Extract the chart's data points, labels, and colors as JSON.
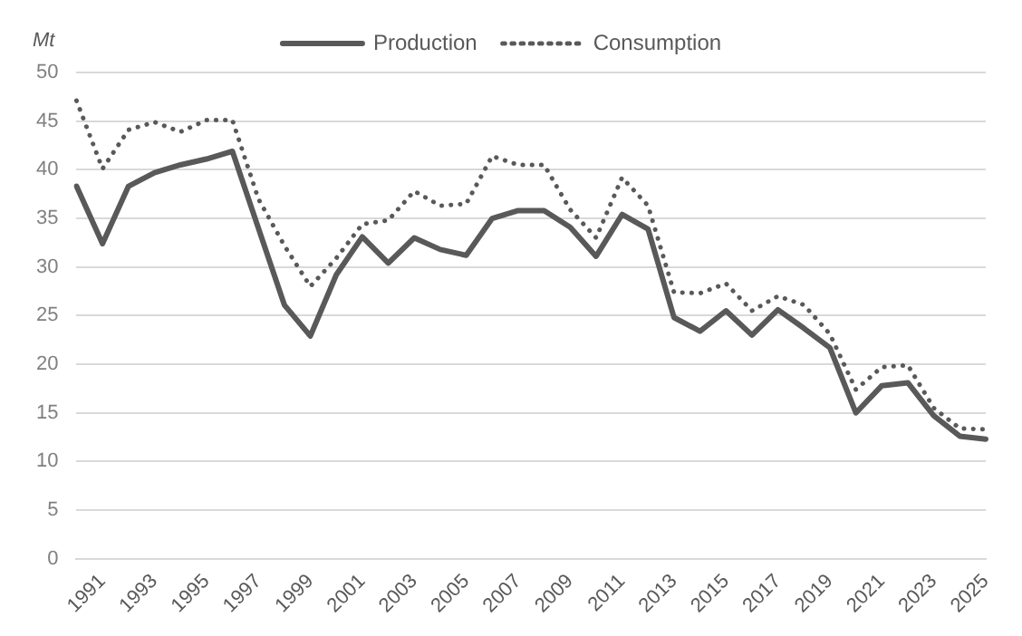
{
  "chart_data": {
    "type": "line",
    "ylabel": "Mt",
    "categories": [
      null,
      "1991",
      null,
      "1993",
      null,
      "1995",
      null,
      "1997",
      null,
      "1999",
      null,
      "2001",
      null,
      "2003",
      null,
      "2005",
      null,
      "2007",
      null,
      "2009",
      null,
      "2011",
      null,
      "2013",
      null,
      "2015",
      null,
      "2017",
      null,
      "2019",
      null,
      "2021",
      null,
      "2023",
      null,
      "2025"
    ],
    "series": [
      {
        "name": "Production",
        "color": "#595959",
        "line_style": "solid",
        "values": [
          38.3,
          32.4,
          38.3,
          39.7,
          40.5,
          41.1,
          41.9,
          34,
          26.1,
          22.9,
          29.2,
          33.1,
          30.4,
          33.0,
          31.8,
          31.2,
          35.0,
          35.8,
          35.8,
          34.1,
          31.1,
          35.4,
          33.9,
          24.8,
          23.4,
          25.5,
          23.0,
          25.6,
          23.7,
          21.7,
          15.0,
          17.8,
          18.1,
          14.7,
          12.6,
          12.3
        ]
      },
      {
        "name": "Consumption",
        "color": "#595959",
        "line_style": "dotted",
        "values": [
          47.1,
          40.1,
          44.1,
          44.9,
          43.9,
          45.1,
          45.1,
          37,
          32.2,
          28.0,
          30.9,
          34.4,
          34.8,
          37.8,
          36.3,
          36.5,
          41.4,
          40.5,
          40.5,
          35.9,
          33.0,
          39.2,
          36.3,
          27.4,
          27.3,
          28.3,
          25.5,
          27.0,
          26.1,
          23.1,
          17.4,
          19.7,
          19.9,
          15.5,
          13.4,
          13.3
        ]
      }
    ],
    "ylim": [
      0,
      50
    ],
    "yticks": [
      0,
      5,
      10,
      15,
      20,
      25,
      30,
      35,
      40,
      45,
      50
    ],
    "grid": "y",
    "legend": "top",
    "marker": "none"
  }
}
